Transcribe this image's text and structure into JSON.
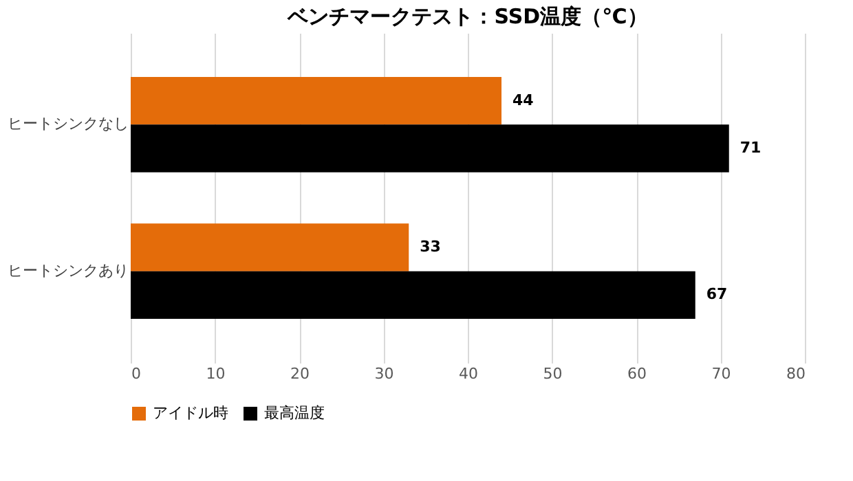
{
  "chart_data": {
    "type": "bar",
    "orientation": "horizontal",
    "title": "ベンチマークテスト：SSD温度（℃）",
    "categories": [
      "ヒートシンクなし",
      "ヒートシンクあり"
    ],
    "series": [
      {
        "name": "アイドル時",
        "color": "#e46c0a",
        "values": [
          44,
          33
        ]
      },
      {
        "name": "最高温度",
        "color": "#000000",
        "values": [
          71,
          67
        ]
      }
    ],
    "xlim": [
      0,
      80
    ],
    "xticks": [
      0,
      10,
      20,
      30,
      40,
      50,
      60,
      70,
      80
    ],
    "grid": "x",
    "legend": "bottom",
    "data_labels": true
  }
}
